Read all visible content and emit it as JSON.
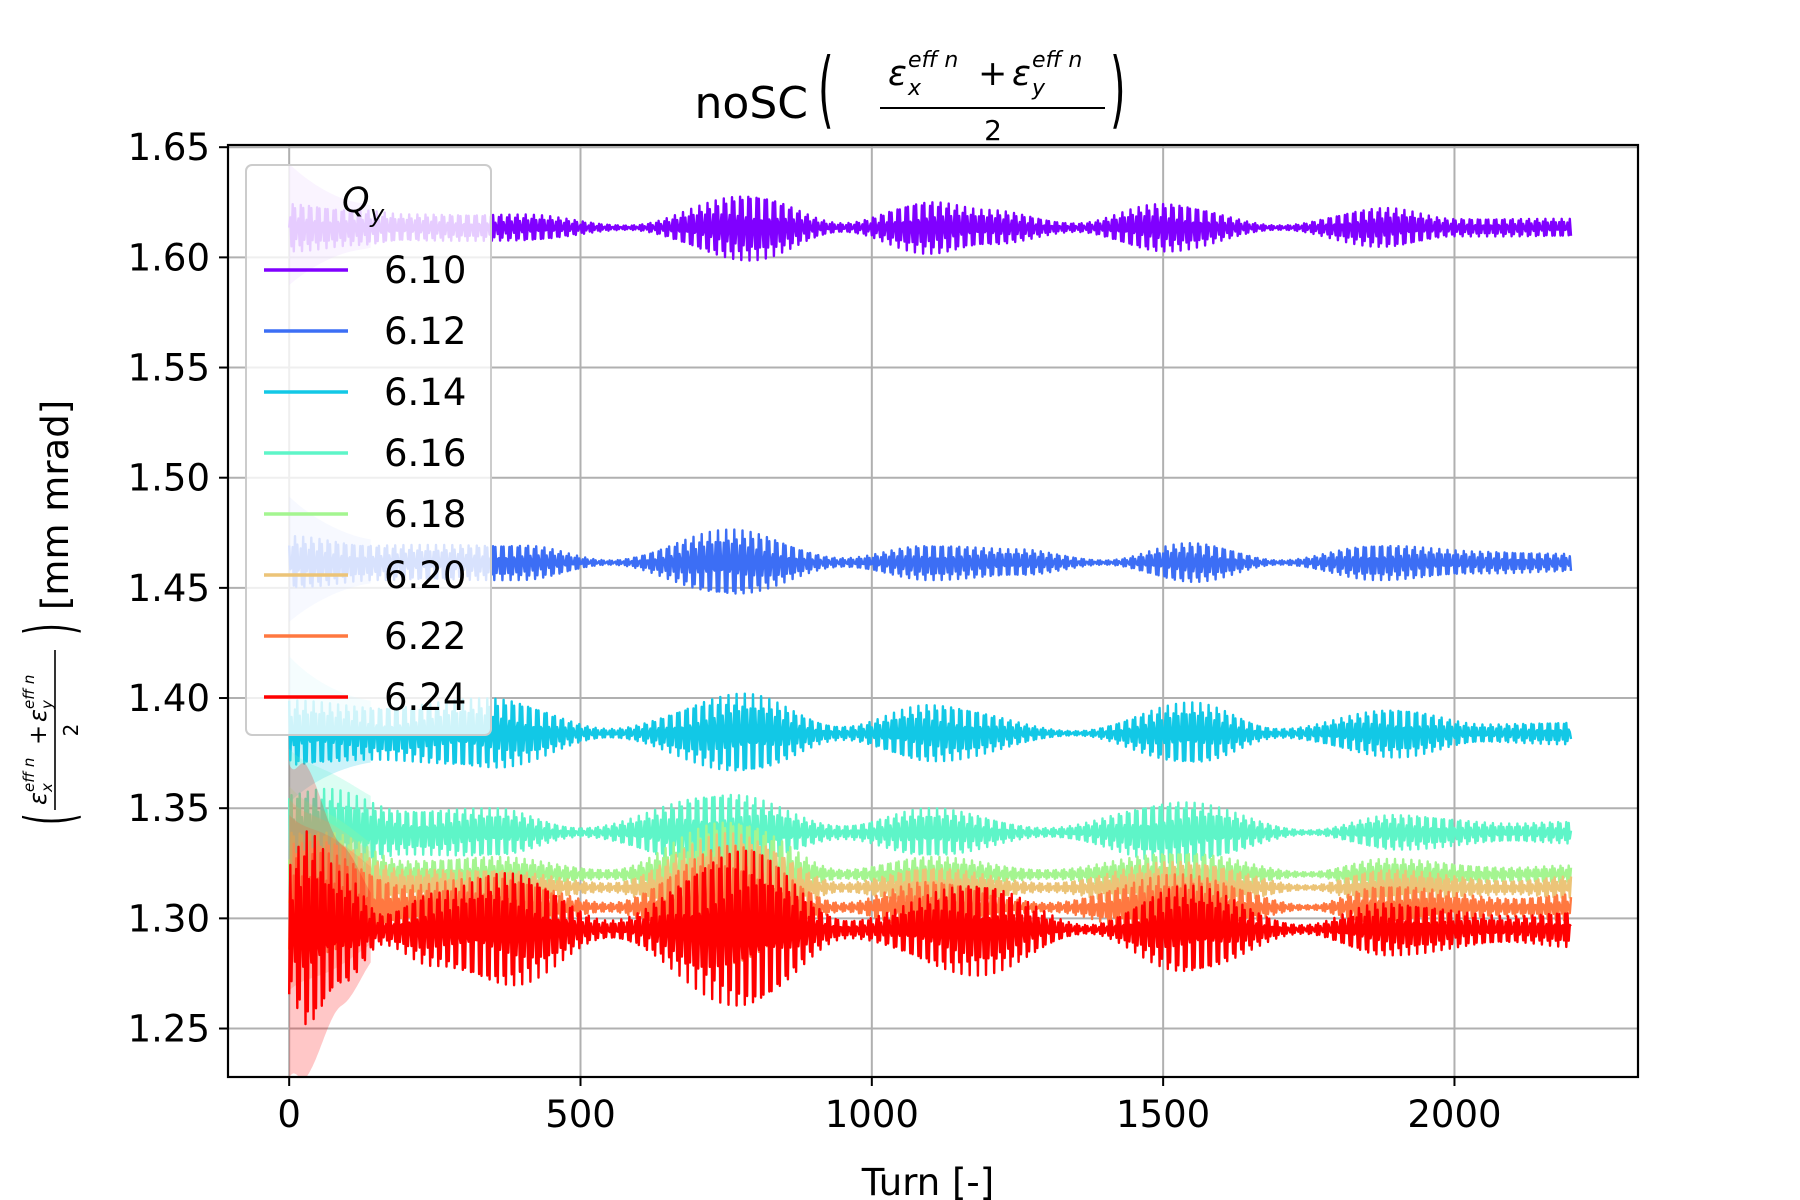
{
  "chart_data": {
    "type": "line",
    "title": "noSC",
    "title_formula": {
      "numerator": "ε_x^{eff n} + ε_y^{eff n}",
      "denominator": "2",
      "eps": "ε",
      "sub_x": "x",
      "sub_y": "y",
      "sup": "eff n",
      "plus": "+"
    },
    "xlabel": "Turn [-]",
    "ylabel_units": "[mm mrad]",
    "xlim": [
      -105,
      2315
    ],
    "ylim": [
      1.228,
      1.651
    ],
    "xticks": [
      0,
      500,
      1000,
      1500,
      2000
    ],
    "xtick_labels": [
      "0",
      "500",
      "1000",
      "1500",
      "2000"
    ],
    "yticks": [
      1.25,
      1.3,
      1.35,
      1.4,
      1.45,
      1.5,
      1.55,
      1.6,
      1.65
    ],
    "ytick_labels": [
      "1.25",
      "1.30",
      "1.35",
      "1.40",
      "1.45",
      "1.50",
      "1.55",
      "1.60",
      "1.65"
    ],
    "grid": true,
    "legend": {
      "title": "Q",
      "title_sub": "y",
      "placement": "upper-left"
    },
    "x_end": 2200,
    "series": [
      {
        "name": "6.10",
        "color": "#8000ff",
        "mean": 1.6135,
        "start_half_amp": 0.018,
        "points": [
          [
            0,
            0.011
          ],
          [
            120,
            0.008
          ],
          [
            200,
            0.006
          ],
          [
            300,
            0.006
          ],
          [
            400,
            0.006
          ],
          [
            580,
            0.001
          ],
          [
            790,
            0.015
          ],
          [
            950,
            0.002
          ],
          [
            1100,
            0.012
          ],
          [
            1200,
            0.008
          ],
          [
            1350,
            0.002
          ],
          [
            1500,
            0.011
          ],
          [
            1700,
            0.001
          ],
          [
            1880,
            0.009
          ],
          [
            2000,
            0.004
          ],
          [
            2200,
            0.004
          ]
        ]
      },
      {
        "name": "6.12",
        "color": "#3c6ef5",
        "mean": 1.4615,
        "start_half_amp": 0.018,
        "points": [
          [
            0,
            0.012
          ],
          [
            150,
            0.008
          ],
          [
            300,
            0.008
          ],
          [
            400,
            0.008
          ],
          [
            550,
            0.001
          ],
          [
            760,
            0.015
          ],
          [
            950,
            0.002
          ],
          [
            1100,
            0.008
          ],
          [
            1250,
            0.006
          ],
          [
            1400,
            0.001
          ],
          [
            1550,
            0.009
          ],
          [
            1700,
            0.001
          ],
          [
            1870,
            0.008
          ],
          [
            2050,
            0.005
          ],
          [
            2200,
            0.004
          ]
        ]
      },
      {
        "name": "6.14",
        "color": "#12c8e6",
        "mean": 1.384,
        "start_half_amp": 0.02,
        "points": [
          [
            0,
            0.015
          ],
          [
            150,
            0.012
          ],
          [
            350,
            0.016
          ],
          [
            550,
            0.002
          ],
          [
            780,
            0.018
          ],
          [
            950,
            0.003
          ],
          [
            1100,
            0.013
          ],
          [
            1350,
            0.001
          ],
          [
            1550,
            0.014
          ],
          [
            1700,
            0.002
          ],
          [
            1900,
            0.011
          ],
          [
            2050,
            0.004
          ],
          [
            2200,
            0.005
          ]
        ]
      },
      {
        "name": "6.16",
        "color": "#5ef5c8",
        "mean": 1.339,
        "start_half_amp": 0.02,
        "points": [
          [
            0,
            0.018
          ],
          [
            60,
            0.02
          ],
          [
            200,
            0.01
          ],
          [
            350,
            0.011
          ],
          [
            500,
            0.002
          ],
          [
            750,
            0.018
          ],
          [
            950,
            0.003
          ],
          [
            1100,
            0.011
          ],
          [
            1300,
            0.002
          ],
          [
            1530,
            0.014
          ],
          [
            1750,
            0.001
          ],
          [
            1900,
            0.008
          ],
          [
            2100,
            0.004
          ],
          [
            2200,
            0.005
          ]
        ]
      },
      {
        "name": "6.18",
        "color": "#a4f590",
        "mean": 1.32,
        "start_half_amp": 0.02,
        "points": [
          [
            0,
            0.02
          ],
          [
            60,
            0.02
          ],
          [
            200,
            0.006
          ],
          [
            350,
            0.008
          ],
          [
            550,
            0.002
          ],
          [
            760,
            0.025
          ],
          [
            950,
            0.002
          ],
          [
            1100,
            0.008
          ],
          [
            1300,
            0.002
          ],
          [
            1530,
            0.01
          ],
          [
            1750,
            0.001
          ],
          [
            1880,
            0.007
          ],
          [
            2100,
            0.003
          ],
          [
            2200,
            0.004
          ]
        ]
      },
      {
        "name": "6.20",
        "color": "#ecc478",
        "mean": 1.314,
        "start_half_amp": 0.02,
        "points": [
          [
            0,
            0.02
          ],
          [
            60,
            0.022
          ],
          [
            200,
            0.008
          ],
          [
            350,
            0.008
          ],
          [
            550,
            0.002
          ],
          [
            760,
            0.025
          ],
          [
            950,
            0.002
          ],
          [
            1100,
            0.009
          ],
          [
            1300,
            0.002
          ],
          [
            1530,
            0.012
          ],
          [
            1750,
            0.001
          ],
          [
            1880,
            0.008
          ],
          [
            2100,
            0.003
          ],
          [
            2200,
            0.005
          ]
        ]
      },
      {
        "name": "6.22",
        "color": "#ff7840",
        "mean": 1.305,
        "start_half_amp": 0.02,
        "points": [
          [
            0,
            0.022
          ],
          [
            60,
            0.025
          ],
          [
            200,
            0.01
          ],
          [
            350,
            0.014
          ],
          [
            550,
            0.002
          ],
          [
            760,
            0.028
          ],
          [
            950,
            0.002
          ],
          [
            1100,
            0.012
          ],
          [
            1300,
            0.002
          ],
          [
            1530,
            0.015
          ],
          [
            1750,
            0.001
          ],
          [
            1880,
            0.01
          ],
          [
            2100,
            0.004
          ],
          [
            2200,
            0.006
          ]
        ]
      },
      {
        "name": "6.24",
        "color": "#ff0000",
        "mean": 1.295,
        "start_half_amp": 0.045,
        "points": [
          [
            0,
            0.03
          ],
          [
            30,
            0.045
          ],
          [
            90,
            0.026
          ],
          [
            160,
            0.007
          ],
          [
            250,
            0.017
          ],
          [
            380,
            0.026
          ],
          [
            550,
            0.004
          ],
          [
            780,
            0.036
          ],
          [
            960,
            0.004
          ],
          [
            1180,
            0.021
          ],
          [
            1370,
            0.002
          ],
          [
            1540,
            0.02
          ],
          [
            1740,
            0.002
          ],
          [
            1880,
            0.012
          ],
          [
            2100,
            0.006
          ],
          [
            2200,
            0.008
          ]
        ]
      }
    ]
  }
}
